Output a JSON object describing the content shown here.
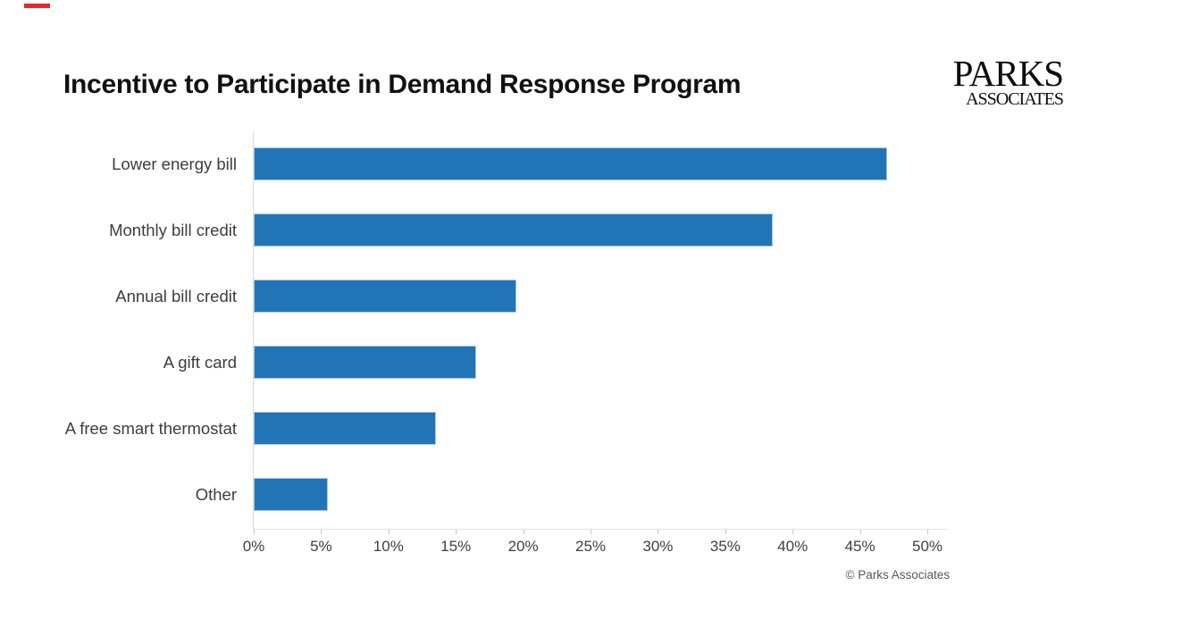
{
  "page": {
    "background": "#ffffff"
  },
  "red_mark": {
    "color": "#e8252a"
  },
  "header": {
    "title": "Incentive to Participate in Demand Response Program"
  },
  "logo": {
    "line1": "PARKS",
    "line2": "ASSOCIATES"
  },
  "footer": {
    "copyright": "© Parks Associates"
  },
  "chart_data": {
    "type": "bar",
    "orientation": "horizontal",
    "title": "Incentive to Participate in Demand Response Program",
    "categories": [
      "Lower energy bill",
      "Monthly bill credit",
      "Annual bill credit",
      "A gift card",
      "A free smart thermostat",
      "Other"
    ],
    "values": [
      47,
      38.5,
      19.5,
      16.5,
      13.5,
      5.5
    ],
    "unit": "%",
    "xlabel": "",
    "ylabel": "",
    "xlim": [
      0,
      50
    ],
    "x_ticks": [
      "0%",
      "5%",
      "10%",
      "15%",
      "20%",
      "25%",
      "30%",
      "35%",
      "40%",
      "45%",
      "50%"
    ],
    "bar_color": "#2175b6",
    "axis_color": "#d9d9d9",
    "grid": false,
    "legend": false
  }
}
